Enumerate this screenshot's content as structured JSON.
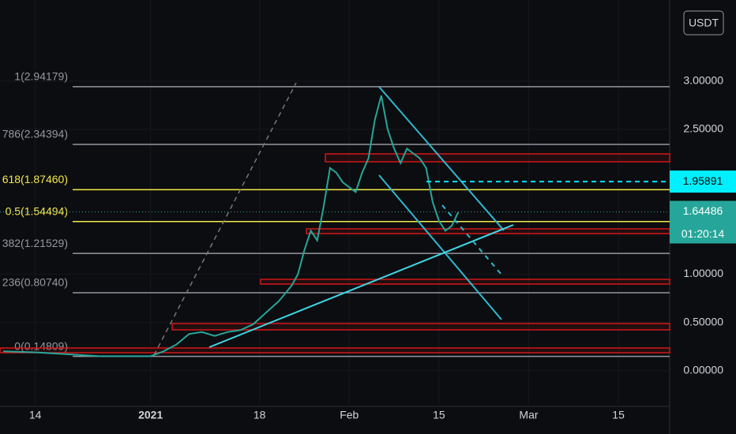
{
  "chart_data": {
    "type": "line",
    "currency": "USDT",
    "x": [
      -5,
      0,
      5,
      10,
      15,
      18,
      20,
      22,
      24,
      26,
      28,
      30,
      32,
      34,
      36,
      38,
      40,
      41,
      42,
      43,
      44,
      45,
      46,
      47,
      48,
      49,
      50,
      51,
      52,
      53,
      54,
      55,
      56,
      57,
      58,
      59,
      60,
      61,
      62,
      63,
      64,
      65,
      66
    ],
    "values": [
      0.2,
      0.19,
      0.17,
      0.15,
      0.15,
      0.15,
      0.2,
      0.27,
      0.38,
      0.4,
      0.36,
      0.4,
      0.42,
      0.48,
      0.6,
      0.72,
      0.88,
      1.0,
      1.25,
      1.45,
      1.35,
      1.7,
      2.1,
      2.05,
      1.95,
      1.9,
      1.85,
      2.05,
      2.2,
      2.6,
      2.85,
      2.5,
      2.3,
      2.15,
      2.3,
      2.25,
      2.2,
      2.1,
      1.75,
      1.55,
      1.45,
      1.5,
      1.64
    ],
    "color": "#26a69a",
    "xlim": [
      -5.5,
      99
    ],
    "xticks": [
      {
        "value": 0,
        "label": "14"
      },
      {
        "value": 18,
        "label": "2021"
      },
      {
        "value": 35,
        "label": "18"
      },
      {
        "value": 49,
        "label": "Feb"
      },
      {
        "value": 63,
        "label": "15"
      },
      {
        "value": 77,
        "label": "Mar"
      },
      {
        "value": 91,
        "label": "15"
      }
    ],
    "ylim": [
      -0.37,
      3.84
    ],
    "yticks": [
      {
        "value": 0,
        "label": "0.00000"
      },
      {
        "value": 0.5,
        "label": "0.50000"
      },
      {
        "value": 1,
        "label": "1.00000"
      },
      {
        "value": 2.5,
        "label": "2.50000"
      },
      {
        "value": 3,
        "label": "3.00000"
      }
    ],
    "fib_levels": [
      {
        "value": 2.94179,
        "label": "1(2.94179)",
        "color": "#9598a1"
      },
      {
        "value": 2.34394,
        "label": "786(2.34394)",
        "color": "#9598a1"
      },
      {
        "value": 1.8746,
        "label": "618(1.87460)",
        "color": "#f5e94a"
      },
      {
        "value": 1.54494,
        "label": "0.5(1.54494)",
        "color": "#f5e94a"
      },
      {
        "value": 1.21529,
        "label": "382(1.21529)",
        "color": "#9598a1"
      },
      {
        "value": 0.8074,
        "label": "236(0.80740)",
        "color": "#9598a1"
      },
      {
        "value": 0.14809,
        "label": "0(0.14809)",
        "color": "#9598a1"
      }
    ],
    "price_line": 1.95891,
    "last_price": 1.64486,
    "countdown": "01:20:14"
  }
}
